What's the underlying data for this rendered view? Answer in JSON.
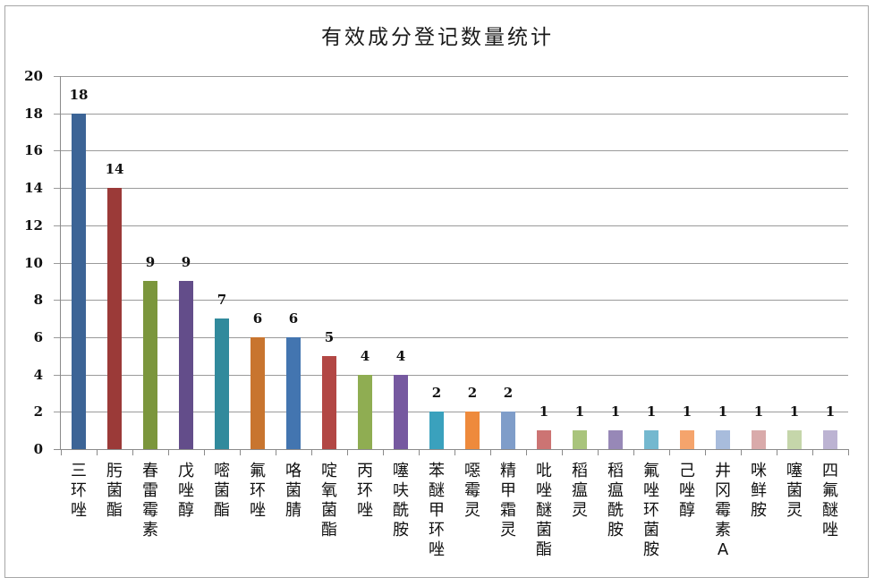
{
  "chart_data": {
    "type": "bar",
    "title": "有效成分登记数量统计",
    "xlabel": "",
    "ylabel": "",
    "ylim": [
      0,
      20
    ],
    "yticks": [
      0,
      2,
      4,
      6,
      8,
      10,
      12,
      14,
      16,
      18,
      20
    ],
    "grid": true,
    "legend": "none",
    "data_labels": true,
    "categories": [
      "三环唑",
      "肟菌酯",
      "春雷霉素",
      "戊唑醇",
      "嘧菌酯",
      "氟环唑",
      "咯菌腈",
      "啶氧菌酯",
      "丙环唑",
      "噻呋酰胺",
      "苯醚甲环唑",
      "噁霉灵",
      "精甲霜灵",
      "吡唑醚菌酯",
      "稻瘟灵",
      "稻瘟酰胺",
      "氟唑环菌胺",
      "己唑醇",
      "井冈霉素A",
      "咪鲜胺",
      "噻菌灵",
      "四氟醚唑"
    ],
    "values": [
      18,
      14,
      9,
      9,
      7,
      6,
      6,
      5,
      4,
      4,
      2,
      2,
      2,
      1,
      1,
      1,
      1,
      1,
      1,
      1,
      1,
      1
    ],
    "colors": [
      "#3c6496",
      "#9b3a38",
      "#7b963c",
      "#634d8a",
      "#318a9c",
      "#c8752f",
      "#4375b0",
      "#b24744",
      "#8fad52",
      "#7659a0",
      "#3aa1bd",
      "#ee8a3c",
      "#7f9dc9",
      "#cc7473",
      "#a9c47c",
      "#9788b7",
      "#74b8cf",
      "#f5a46c",
      "#a8bcdc",
      "#d9aaaa",
      "#c5d6aa",
      "#bcb3d2"
    ]
  }
}
